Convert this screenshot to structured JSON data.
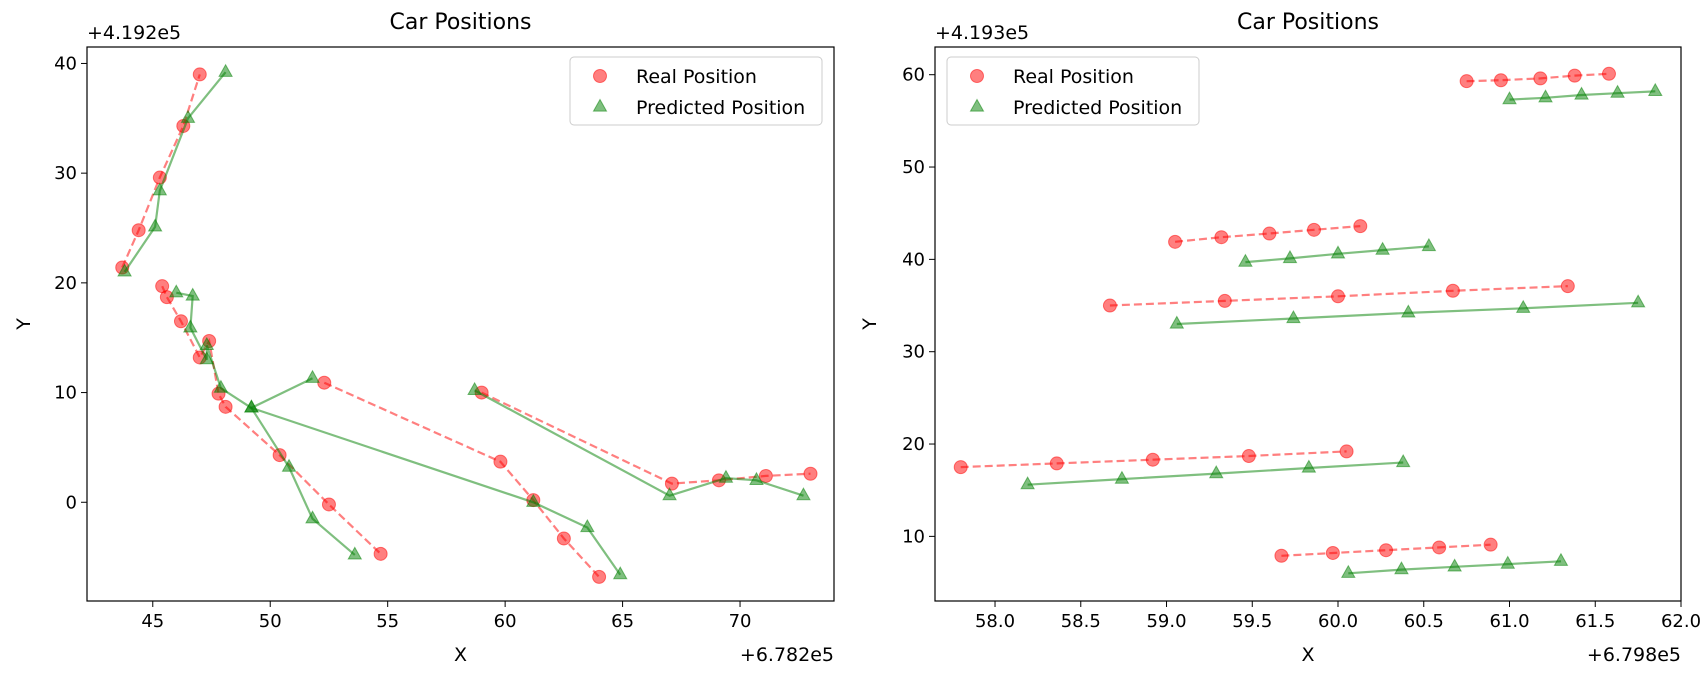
{
  "chart_data": [
    {
      "type": "line",
      "title": "Car Positions",
      "xlabel": "X",
      "ylabel": "Y",
      "x_offset": "+6.782e5",
      "y_offset": "+4.192e5",
      "xlim": [
        42.2,
        74.0
      ],
      "ylim": [
        -9.0,
        41.5
      ],
      "xticks": [
        45,
        50,
        55,
        60,
        65,
        70
      ],
      "xtick_labels": [
        "45",
        "50",
        "55",
        "60",
        "65",
        "70"
      ],
      "yticks": [
        0,
        10,
        20,
        30,
        40
      ],
      "ytick_labels": [
        "0",
        "10",
        "20",
        "30",
        "40"
      ],
      "legend": {
        "position": "top-right",
        "entries": [
          "Real Position",
          "Predicted Position"
        ]
      },
      "series": [
        {
          "name": "Real Position",
          "color": "#ff0000",
          "marker": "circle",
          "line": "dashed",
          "tracks": [
            [
              [
                43.7,
                21.4
              ],
              [
                44.4,
                24.8
              ],
              [
                45.3,
                29.6
              ],
              [
                46.3,
                34.3
              ],
              [
                47.0,
                39.0
              ]
            ],
            [
              [
                45.4,
                19.7
              ],
              [
                45.6,
                18.7
              ],
              [
                46.2,
                16.5
              ],
              [
                47.0,
                13.2
              ],
              [
                47.4,
                14.7
              ],
              [
                47.8,
                9.9
              ],
              [
                48.1,
                8.7
              ],
              [
                50.4,
                4.3
              ],
              [
                52.5,
                -0.2
              ],
              [
                54.7,
                -4.7
              ]
            ],
            [
              [
                52.3,
                10.9
              ],
              [
                59.8,
                3.7
              ],
              [
                61.2,
                0.2
              ],
              [
                62.5,
                -3.3
              ],
              [
                64.0,
                -6.8
              ]
            ],
            [
              [
                59.0,
                10.0
              ],
              [
                67.1,
                1.7
              ],
              [
                69.1,
                2.0
              ],
              [
                71.1,
                2.4
              ],
              [
                73.0,
                2.6
              ]
            ]
          ]
        },
        {
          "name": "Predicted Position",
          "color": "#008000",
          "marker": "triangle",
          "line": "solid",
          "tracks": [
            [
              [
                43.8,
                21.0
              ],
              [
                45.1,
                25.1
              ],
              [
                45.3,
                28.4
              ],
              [
                46.5,
                35.0
              ],
              [
                48.1,
                39.2
              ]
            ],
            [
              [
                46.0,
                19.1
              ],
              [
                46.7,
                18.8
              ],
              [
                46.6,
                15.9
              ],
              [
                47.3,
                13.0
              ],
              [
                47.3,
                14.3
              ],
              [
                47.9,
                10.4
              ],
              [
                49.2,
                8.6
              ],
              [
                50.8,
                3.2
              ],
              [
                51.8,
                -1.5
              ],
              [
                53.6,
                -4.8
              ]
            ],
            [
              [
                51.8,
                11.3
              ],
              [
                49.2,
                8.6
              ],
              [
                61.2,
                0.0
              ],
              [
                63.5,
                -2.3
              ],
              [
                64.9,
                -6.6
              ]
            ],
            [
              [
                58.7,
                10.2
              ],
              [
                67.0,
                0.6
              ],
              [
                69.4,
                2.2
              ],
              [
                70.7,
                2.0
              ],
              [
                72.7,
                0.6
              ]
            ]
          ]
        }
      ]
    },
    {
      "type": "line",
      "title": "Car Positions",
      "xlabel": "X",
      "ylabel": "Y",
      "x_offset": "+6.798e5",
      "y_offset": "+4.193e5",
      "xlim": [
        57.65,
        62.0
      ],
      "ylim": [
        3.0,
        63.0
      ],
      "xticks": [
        58.0,
        58.5,
        59.0,
        59.5,
        60.0,
        60.5,
        61.0,
        61.5,
        62.0
      ],
      "xtick_labels": [
        "58.0",
        "58.5",
        "59.0",
        "59.5",
        "60.0",
        "60.5",
        "61.0",
        "61.5",
        "62.0"
      ],
      "yticks": [
        10,
        20,
        30,
        40,
        50,
        60
      ],
      "ytick_labels": [
        "10",
        "20",
        "30",
        "40",
        "50",
        "60"
      ],
      "legend": {
        "position": "top-left",
        "entries": [
          "Real Position",
          "Predicted Position"
        ]
      },
      "series": [
        {
          "name": "Real Position",
          "color": "#ff0000",
          "marker": "circle",
          "line": "dashed",
          "tracks": [
            [
              [
                60.75,
                59.3
              ],
              [
                60.95,
                59.4
              ],
              [
                61.18,
                59.6
              ],
              [
                61.38,
                59.9
              ],
              [
                61.58,
                60.1
              ]
            ],
            [
              [
                59.05,
                41.9
              ],
              [
                59.32,
                42.4
              ],
              [
                59.6,
                42.8
              ],
              [
                59.86,
                43.2
              ],
              [
                60.13,
                43.6
              ]
            ],
            [
              [
                58.67,
                35.0
              ],
              [
                59.34,
                35.5
              ],
              [
                60.0,
                36.0
              ],
              [
                60.67,
                36.6
              ],
              [
                61.34,
                37.1
              ]
            ],
            [
              [
                57.8,
                17.5
              ],
              [
                58.36,
                17.9
              ],
              [
                58.92,
                18.3
              ],
              [
                59.48,
                18.7
              ],
              [
                60.05,
                19.2
              ]
            ],
            [
              [
                59.67,
                7.9
              ],
              [
                59.97,
                8.2
              ],
              [
                60.28,
                8.5
              ],
              [
                60.59,
                8.8
              ],
              [
                60.89,
                9.1
              ]
            ]
          ]
        },
        {
          "name": "Predicted Position",
          "color": "#008000",
          "marker": "triangle",
          "line": "solid",
          "tracks": [
            [
              [
                61.0,
                57.3
              ],
              [
                61.21,
                57.5
              ],
              [
                61.42,
                57.8
              ],
              [
                61.63,
                58.0
              ],
              [
                61.85,
                58.2
              ]
            ],
            [
              [
                59.46,
                39.7
              ],
              [
                59.72,
                40.1
              ],
              [
                60.0,
                40.6
              ],
              [
                60.26,
                41.0
              ],
              [
                60.53,
                41.4
              ]
            ],
            [
              [
                59.06,
                33.0
              ],
              [
                59.74,
                33.6
              ],
              [
                60.41,
                34.2
              ],
              [
                61.08,
                34.7
              ],
              [
                61.75,
                35.3
              ]
            ],
            [
              [
                58.19,
                15.6
              ],
              [
                58.74,
                16.2
              ],
              [
                59.29,
                16.8
              ],
              [
                59.83,
                17.4
              ],
              [
                60.38,
                18.0
              ]
            ],
            [
              [
                60.06,
                6.0
              ],
              [
                60.37,
                6.4
              ],
              [
                60.68,
                6.7
              ],
              [
                60.99,
                7.0
              ],
              [
                61.3,
                7.3
              ]
            ]
          ]
        }
      ]
    }
  ]
}
